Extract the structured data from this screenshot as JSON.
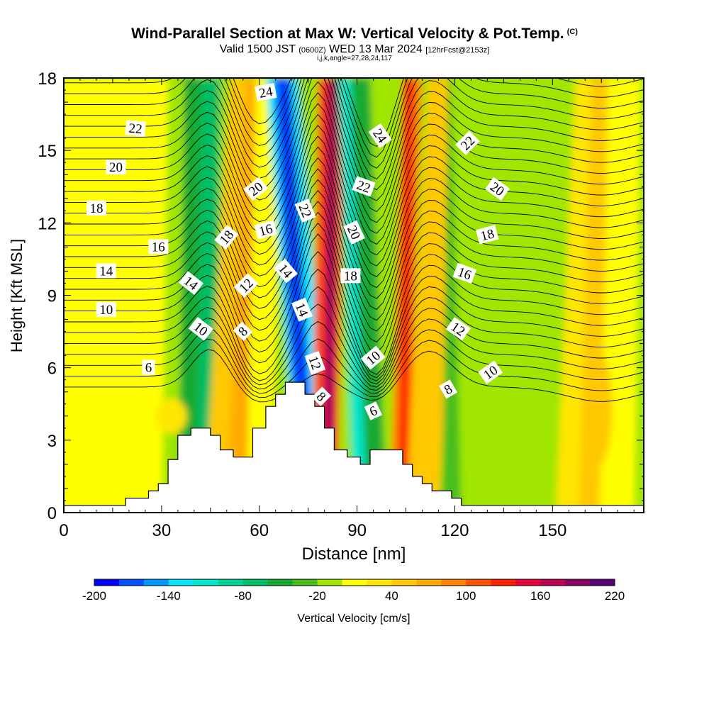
{
  "header": {
    "title": "Wind-Parallel Section at Max W: Vertical Velocity & Pot.Temp.",
    "copyright": "(C)",
    "subtitle_a": "Valid 1500 JST",
    "subtitle_b": "(0600Z)",
    "subtitle_c": "WED 13 Mar 2024",
    "subtitle_d": "[12hrFcst@2153z]",
    "subtitle2": "i,j,k,angle=27,28,24,117"
  },
  "chart_data": {
    "type": "heatmap",
    "title": "Wind-Parallel Section at Max W: Vertical Velocity & Pot.Temp.",
    "xlabel": "Distance [nm]",
    "ylabel": "Height [Kft MSL]",
    "xlim": [
      0,
      178
    ],
    "ylim": [
      0,
      18
    ],
    "x_ticks": [
      0,
      30,
      60,
      90,
      120,
      150
    ],
    "y_ticks": [
      0,
      3,
      6,
      9,
      12,
      15,
      18
    ],
    "colorbar": {
      "label": "Vertical Velocity [cm/s]",
      "tick_labels": [
        -200,
        -140,
        -80,
        -20,
        40,
        100,
        160,
        220
      ],
      "colors": [
        "#0000ff",
        "#0050ff",
        "#0096ff",
        "#00e6ff",
        "#00e6c8",
        "#00d296",
        "#00be64",
        "#14aa32",
        "#46be1e",
        "#a0e600",
        "#ffff00",
        "#ffe600",
        "#ffc800",
        "#ffaa00",
        "#ff8200",
        "#ff5000",
        "#ff1e00",
        "#e6003c",
        "#be0050",
        "#8c0064",
        "#5a0078"
      ]
    },
    "terrain_profile": [
      [
        0,
        0.3
      ],
      [
        19,
        0.3
      ],
      [
        19,
        0.6
      ],
      [
        26,
        0.6
      ],
      [
        26,
        0.9
      ],
      [
        29,
        0.9
      ],
      [
        29,
        1.2
      ],
      [
        32,
        1.2
      ],
      [
        32,
        2.2
      ],
      [
        35,
        2.2
      ],
      [
        35,
        3.2
      ],
      [
        39,
        3.2
      ],
      [
        39,
        3.5
      ],
      [
        45,
        3.5
      ],
      [
        45,
        3.2
      ],
      [
        48,
        3.2
      ],
      [
        48,
        2.6
      ],
      [
        52,
        2.6
      ],
      [
        52,
        2.3
      ],
      [
        58,
        2.3
      ],
      [
        58,
        3.5
      ],
      [
        62,
        3.5
      ],
      [
        62,
        4.4
      ],
      [
        65,
        4.4
      ],
      [
        65,
        4.9
      ],
      [
        68,
        4.9
      ],
      [
        68,
        5.4
      ],
      [
        74,
        5.4
      ],
      [
        74,
        4.9
      ],
      [
        77,
        4.9
      ],
      [
        77,
        4.4
      ],
      [
        80,
        4.4
      ],
      [
        80,
        3.5
      ],
      [
        83,
        3.5
      ],
      [
        83,
        2.6
      ],
      [
        87,
        2.6
      ],
      [
        87,
        2.3
      ],
      [
        91,
        2.3
      ],
      [
        91,
        2.0
      ],
      [
        94,
        2.0
      ],
      [
        94,
        2.6
      ],
      [
        104,
        2.6
      ],
      [
        104,
        2.0
      ],
      [
        107,
        2.0
      ],
      [
        107,
        1.5
      ],
      [
        110,
        1.5
      ],
      [
        110,
        1.2
      ],
      [
        113,
        1.2
      ],
      [
        113,
        0.9
      ],
      [
        119,
        0.9
      ],
      [
        119,
        0.6
      ],
      [
        122,
        0.6
      ],
      [
        122,
        0.3
      ],
      [
        178,
        0.3
      ]
    ],
    "theta_contour_labels": [
      {
        "text": "24",
        "x": 62,
        "y": 17.4,
        "angle": -10
      },
      {
        "text": "22",
        "x": 22,
        "y": 15.9,
        "angle": 5
      },
      {
        "text": "20",
        "x": 16,
        "y": 14.3,
        "angle": 0
      },
      {
        "text": "18",
        "x": 10,
        "y": 12.6,
        "angle": 0
      },
      {
        "text": "16",
        "x": 29,
        "y": 11.0,
        "angle": 0
      },
      {
        "text": "14",
        "x": 13,
        "y": 10.0,
        "angle": 0
      },
      {
        "text": "10",
        "x": 13,
        "y": 8.4,
        "angle": 0
      },
      {
        "text": "6",
        "x": 26,
        "y": 6.0,
        "angle": 0
      },
      {
        "text": "14",
        "x": 39,
        "y": 9.5,
        "angle": 38
      },
      {
        "text": "10",
        "x": 42,
        "y": 7.6,
        "angle": 38
      },
      {
        "text": "18",
        "x": 50,
        "y": 11.4,
        "angle": -50
      },
      {
        "text": "20",
        "x": 59,
        "y": 13.4,
        "angle": -38
      },
      {
        "text": "16",
        "x": 62,
        "y": 11.7,
        "angle": -15
      },
      {
        "text": "12",
        "x": 56,
        "y": 9.4,
        "angle": -45
      },
      {
        "text": "8",
        "x": 55,
        "y": 7.5,
        "angle": -45
      },
      {
        "text": "22",
        "x": 74,
        "y": 12.5,
        "angle": 68
      },
      {
        "text": "14",
        "x": 68,
        "y": 10.0,
        "angle": 50
      },
      {
        "text": "14",
        "x": 73,
        "y": 8.4,
        "angle": 68
      },
      {
        "text": "12",
        "x": 77,
        "y": 6.2,
        "angle": 70
      },
      {
        "text": "8",
        "x": 79,
        "y": 4.8,
        "angle": 45
      },
      {
        "text": "20",
        "x": 89,
        "y": 11.6,
        "angle": 65
      },
      {
        "text": "18",
        "x": 88,
        "y": 9.8,
        "angle": 0
      },
      {
        "text": "22",
        "x": 92,
        "y": 13.5,
        "angle": 20
      },
      {
        "text": "24",
        "x": 97,
        "y": 15.6,
        "angle": 55
      },
      {
        "text": "10",
        "x": 95,
        "y": 6.4,
        "angle": -40
      },
      {
        "text": "6",
        "x": 95,
        "y": 4.2,
        "angle": -25
      },
      {
        "text": "22",
        "x": 124,
        "y": 15.3,
        "angle": -45
      },
      {
        "text": "20",
        "x": 133,
        "y": 13.4,
        "angle": 35
      },
      {
        "text": "18",
        "x": 130,
        "y": 11.5,
        "angle": -15
      },
      {
        "text": "16",
        "x": 123,
        "y": 9.9,
        "angle": 20
      },
      {
        "text": "12",
        "x": 121,
        "y": 7.6,
        "angle": 35
      },
      {
        "text": "10",
        "x": 131,
        "y": 5.8,
        "angle": -35
      },
      {
        "text": "8",
        "x": 118,
        "y": 5.1,
        "angle": -30
      }
    ]
  }
}
